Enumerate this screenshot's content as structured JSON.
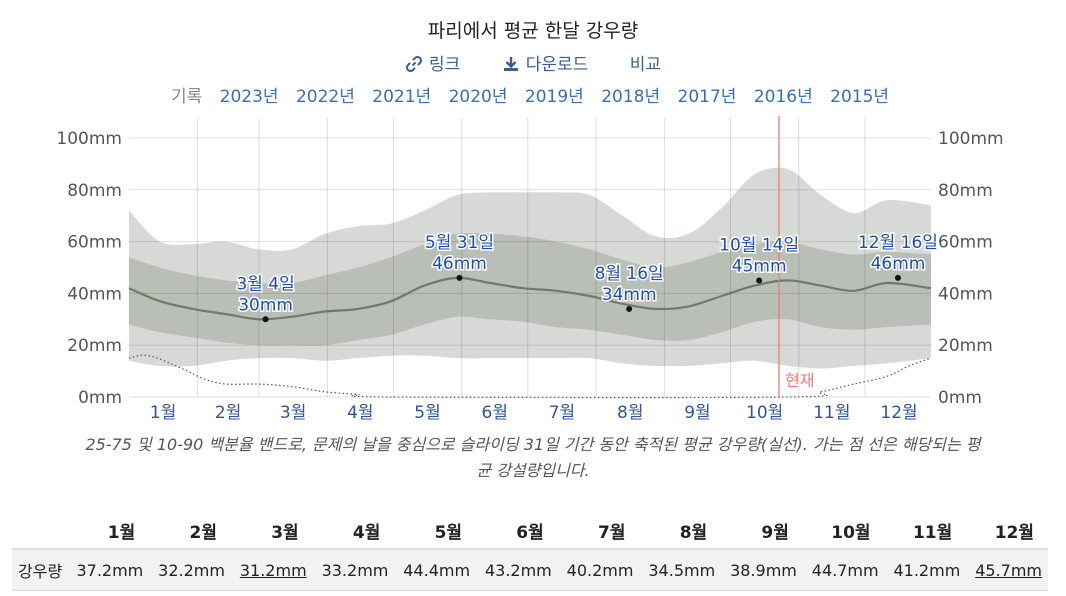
{
  "header": {
    "title": "파리에서 평균 한달 강우량",
    "link_label": "링크",
    "download_label": "다운로드",
    "compare_label": "비교",
    "history_label": "기록",
    "years": [
      "2023년",
      "2022년",
      "2021년",
      "2020년",
      "2019년",
      "2018년",
      "2017년",
      "2016년",
      "2015년"
    ]
  },
  "colors": {
    "band_10_90": "#d6d9d5",
    "band_25_75": "#b9beb6",
    "median_line": "#6f7a6b",
    "now_line": "#f07a7a",
    "annotation_text": "#1c4ea8",
    "month_label": "#2f5597"
  },
  "chart_data": {
    "type": "area",
    "x_unit": "day_of_year",
    "ylim": [
      0,
      100
    ],
    "y_ticks": [
      "0mm",
      "20mm",
      "40mm",
      "60mm",
      "80mm",
      "100mm"
    ],
    "month_labels": [
      "1월",
      "2월",
      "3월",
      "4월",
      "5월",
      "6월",
      "7월",
      "8월",
      "9월",
      "10월",
      "11월",
      "12월"
    ],
    "now_label": "현재",
    "now_day": 296,
    "grid": true,
    "series": [
      {
        "name": "p10",
        "x": [
          1,
          15,
          30,
          45,
          60,
          75,
          90,
          105,
          120,
          135,
          150,
          165,
          180,
          195,
          210,
          225,
          240,
          255,
          270,
          285,
          300,
          315,
          330,
          345,
          365
        ],
        "values": [
          14,
          12,
          12,
          14,
          15,
          15,
          14,
          15,
          16,
          16,
          15,
          15,
          15,
          15,
          15,
          13,
          12,
          12,
          13,
          14,
          12,
          11,
          12,
          13,
          15
        ]
      },
      {
        "name": "p25",
        "x": [
          1,
          15,
          30,
          45,
          60,
          75,
          90,
          105,
          120,
          135,
          150,
          165,
          180,
          195,
          210,
          225,
          240,
          255,
          270,
          285,
          300,
          315,
          330,
          345,
          365
        ],
        "values": [
          28,
          25,
          23,
          21,
          20,
          20,
          20,
          22,
          24,
          28,
          31,
          30,
          29,
          27,
          26,
          24,
          22,
          22,
          25,
          29,
          30,
          27,
          26,
          27,
          28
        ]
      },
      {
        "name": "median",
        "x": [
          1,
          15,
          30,
          45,
          60,
          75,
          90,
          105,
          120,
          135,
          150,
          165,
          180,
          195,
          210,
          225,
          240,
          255,
          270,
          285,
          300,
          315,
          330,
          345,
          365
        ],
        "values": [
          42,
          37,
          34,
          32,
          30,
          31,
          33,
          34,
          37,
          43,
          46,
          44,
          42,
          41,
          39,
          36,
          34,
          35,
          39,
          43,
          45,
          43,
          41,
          44,
          42
        ]
      },
      {
        "name": "p75",
        "x": [
          1,
          15,
          30,
          45,
          60,
          75,
          90,
          105,
          120,
          135,
          150,
          165,
          180,
          195,
          210,
          225,
          240,
          255,
          270,
          285,
          300,
          315,
          330,
          345,
          365
        ],
        "values": [
          54,
          50,
          47,
          45,
          44,
          44,
          47,
          50,
          54,
          59,
          63,
          63,
          62,
          60,
          57,
          53,
          50,
          52,
          56,
          59,
          60,
          57,
          55,
          56,
          55
        ]
      },
      {
        "name": "p90",
        "x": [
          1,
          15,
          30,
          45,
          60,
          75,
          90,
          105,
          120,
          135,
          150,
          165,
          180,
          195,
          210,
          225,
          240,
          255,
          270,
          285,
          300,
          315,
          330,
          345,
          365
        ],
        "values": [
          72,
          60,
          59,
          60,
          57,
          57,
          63,
          66,
          67,
          72,
          78,
          79,
          79,
          79,
          78,
          70,
          62,
          63,
          73,
          86,
          88,
          78,
          71,
          76,
          74
        ]
      },
      {
        "name": "snow",
        "x": [
          1,
          10,
          25,
          35,
          45,
          60,
          75,
          90,
          105,
          120,
          300,
          315,
          330,
          345,
          355,
          365
        ],
        "values": [
          15,
          16,
          11,
          7,
          5,
          5,
          4,
          2,
          1,
          0,
          0,
          2,
          5,
          8,
          12,
          15
        ]
      }
    ],
    "annotations": [
      {
        "day": 63,
        "value": 30,
        "date": "3월 4일",
        "amount": "30mm",
        "above": true
      },
      {
        "day": 151,
        "value": 46,
        "date": "5월 31일",
        "amount": "46mm",
        "above": true
      },
      {
        "day": 228,
        "value": 34,
        "date": "8월 16일",
        "amount": "34mm",
        "above": true
      },
      {
        "day": 287,
        "value": 45,
        "date": "10월 14일",
        "amount": "45mm",
        "above": true
      },
      {
        "day": 350,
        "value": 46,
        "date": "12월 16일",
        "amount": "46mm",
        "above": true
      }
    ]
  },
  "caption": "25-75 및 10-90 백분율 밴드로, 문제의 날을 중심으로 슬라이딩 31일 기간 동안 축적된 평균 강우량(실선). 가는 점 선은 해당되는 평균 강설량입니다.",
  "table": {
    "row_label": "강우량",
    "months": [
      "1월",
      "2월",
      "3월",
      "4월",
      "5월",
      "6월",
      "7월",
      "8월",
      "9월",
      "10월",
      "11월",
      "12월"
    ],
    "values": [
      "37.2mm",
      "32.2mm",
      "31.2mm",
      "33.2mm",
      "44.4mm",
      "43.2mm",
      "40.2mm",
      "34.5mm",
      "38.9mm",
      "44.7mm",
      "41.2mm",
      "45.7mm"
    ]
  }
}
